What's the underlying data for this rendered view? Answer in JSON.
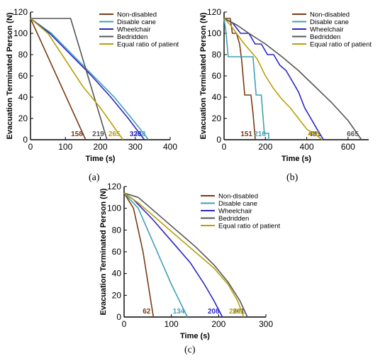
{
  "colors": {
    "non_disabled": "#7a3b14",
    "disable_cane": "#3fa0b6",
    "wheelchair": "#2a24c8",
    "bedridden": "#555555",
    "equal_ratio": "#b9a00c",
    "axis": "#000000"
  },
  "chart_data": [
    {
      "type": "line",
      "panel": "(a)",
      "xlabel": "Time (s)",
      "ylabel": "Evacuation Terminated Person (N)",
      "xlim": [
        0,
        400
      ],
      "ylim": [
        0,
        120
      ],
      "xticks": [
        0,
        100,
        200,
        300,
        400
      ],
      "yticks": [
        0,
        20,
        40,
        60,
        80,
        100,
        120
      ],
      "legend_position": "top-right",
      "series": [
        {
          "name": "Non-disabled",
          "color_key": "non_disabled",
          "end_label": "158",
          "points": [
            [
              0,
              114
            ],
            [
              158,
              0
            ]
          ]
        },
        {
          "name": "Disable cane",
          "color_key": "disable_cane",
          "end_label": "338",
          "points": [
            [
              0,
              114
            ],
            [
              60,
              100
            ],
            [
              120,
              80
            ],
            [
              180,
              60
            ],
            [
              240,
              40
            ],
            [
              290,
              20
            ],
            [
              338,
              0
            ]
          ]
        },
        {
          "name": "Wheelchair",
          "color_key": "wheelchair",
          "end_label": "326",
          "points": [
            [
              0,
              114
            ],
            [
              55,
              100
            ],
            [
              115,
              80
            ],
            [
              175,
              60
            ],
            [
              230,
              40
            ],
            [
              280,
              20
            ],
            [
              326,
              0
            ]
          ]
        },
        {
          "name": "Bedridden",
          "color_key": "bedridden",
          "end_label": "219",
          "points": [
            [
              0,
              114
            ],
            [
              115,
              114
            ],
            [
              219,
              0
            ]
          ]
        },
        {
          "name": "Equal ratio of patient",
          "color_key": "equal_ratio",
          "end_label": "265",
          "points": [
            [
              0,
              114
            ],
            [
              50,
              100
            ],
            [
              100,
              75
            ],
            [
              150,
              50
            ],
            [
              200,
              30
            ],
            [
              265,
              0
            ]
          ]
        }
      ]
    },
    {
      "type": "line",
      "panel": "(b)",
      "xlabel": "Time (s)",
      "ylabel": "Evacuation Terminated Person (N)",
      "xlim": [
        0,
        700
      ],
      "ylim": [
        0,
        120
      ],
      "xticks": [
        0,
        200,
        400,
        600
      ],
      "yticks": [
        0,
        20,
        40,
        60,
        80,
        100,
        120
      ],
      "legend_position": "top-right",
      "series": [
        {
          "name": "Non-disabled",
          "color_key": "non_disabled",
          "end_label": "151",
          "points": [
            [
              0,
              114
            ],
            [
              30,
              114
            ],
            [
              40,
              100
            ],
            [
              60,
              100
            ],
            [
              75,
              90
            ],
            [
              85,
              75
            ],
            [
              100,
              42
            ],
            [
              130,
              42
            ],
            [
              140,
              25
            ],
            [
              151,
              0
            ]
          ]
        },
        {
          "name": "Disable cane",
          "color_key": "disable_cane",
          "end_label": "216",
          "points": [
            [
              0,
              114
            ],
            [
              10,
              100
            ],
            [
              20,
              78
            ],
            [
              60,
              78
            ],
            [
              70,
              78
            ],
            [
              140,
              78
            ],
            [
              155,
              42
            ],
            [
              180,
              42
            ],
            [
              195,
              6
            ],
            [
              216,
              6
            ],
            [
              216,
              0
            ]
          ]
        },
        {
          "name": "Wheelchair",
          "color_key": "wheelchair",
          "end_label": "481",
          "points": [
            [
              0,
              114
            ],
            [
              40,
              110
            ],
            [
              80,
              100
            ],
            [
              120,
              100
            ],
            [
              150,
              90
            ],
            [
              180,
              90
            ],
            [
              210,
              80
            ],
            [
              240,
              80
            ],
            [
              270,
              70
            ],
            [
              300,
              65
            ],
            [
              330,
              55
            ],
            [
              360,
              45
            ],
            [
              390,
              30
            ],
            [
              420,
              20
            ],
            [
              450,
              10
            ],
            [
              481,
              0
            ]
          ]
        },
        {
          "name": "Bedridden",
          "color_key": "bedridden",
          "end_label": "665",
          "points": [
            [
              0,
              114
            ],
            [
              60,
              108
            ],
            [
              120,
              100
            ],
            [
              200,
              90
            ],
            [
              280,
              78
            ],
            [
              360,
              65
            ],
            [
              440,
              50
            ],
            [
              520,
              35
            ],
            [
              600,
              18
            ],
            [
              665,
              0
            ]
          ]
        },
        {
          "name": "Equal ratio of patient",
          "color_key": "equal_ratio",
          "end_label": "476",
          "points": [
            [
              0,
              114
            ],
            [
              30,
              108
            ],
            [
              60,
              100
            ],
            [
              90,
              92
            ],
            [
              120,
              85
            ],
            [
              160,
              76
            ],
            [
              200,
              60
            ],
            [
              240,
              48
            ],
            [
              280,
              38
            ],
            [
              320,
              30
            ],
            [
              360,
              20
            ],
            [
              400,
              10
            ],
            [
              440,
              5
            ],
            [
              476,
              0
            ]
          ]
        }
      ]
    },
    {
      "type": "line",
      "panel": "(c)",
      "xlabel": "Time (s)",
      "ylabel": "Evacuation Terminated Person (N)",
      "xlim": [
        0,
        300
      ],
      "ylim": [
        0,
        120
      ],
      "xticks": [
        0,
        100,
        200,
        300
      ],
      "yticks": [
        0,
        20,
        40,
        60,
        80,
        100,
        120
      ],
      "legend_position": "top-right",
      "series": [
        {
          "name": "Non-disabled",
          "color_key": "non_disabled",
          "end_label": "62",
          "points": [
            [
              0,
              114
            ],
            [
              20,
              100
            ],
            [
              40,
              60
            ],
            [
              62,
              0
            ]
          ]
        },
        {
          "name": "Disable cane",
          "color_key": "disable_cane",
          "end_label": "134",
          "points": [
            [
              0,
              114
            ],
            [
              30,
              100
            ],
            [
              60,
              70
            ],
            [
              100,
              30
            ],
            [
              134,
              0
            ]
          ]
        },
        {
          "name": "Wheelchair",
          "color_key": "wheelchair",
          "end_label": "208",
          "points": [
            [
              0,
              114
            ],
            [
              20,
              108
            ],
            [
              60,
              90
            ],
            [
              100,
              70
            ],
            [
              140,
              50
            ],
            [
              170,
              30
            ],
            [
              190,
              15
            ],
            [
              208,
              0
            ]
          ]
        },
        {
          "name": "Bedridden",
          "color_key": "bedridden",
          "end_label": "261",
          "points": [
            [
              0,
              114
            ],
            [
              30,
              110
            ],
            [
              70,
              95
            ],
            [
              110,
              80
            ],
            [
              150,
              65
            ],
            [
              190,
              48
            ],
            [
              220,
              32
            ],
            [
              245,
              15
            ],
            [
              261,
              0
            ]
          ]
        },
        {
          "name": "Equal ratio of patient",
          "color_key": "equal_ratio",
          "end_label": "253",
          "points": [
            [
              0,
              114
            ],
            [
              30,
              105
            ],
            [
              70,
              90
            ],
            [
              110,
              75
            ],
            [
              150,
              60
            ],
            [
              190,
              45
            ],
            [
              220,
              30
            ],
            [
              240,
              15
            ],
            [
              253,
              0
            ]
          ]
        }
      ]
    }
  ],
  "captions": [
    "(a)",
    "(b)",
    "(c)"
  ]
}
